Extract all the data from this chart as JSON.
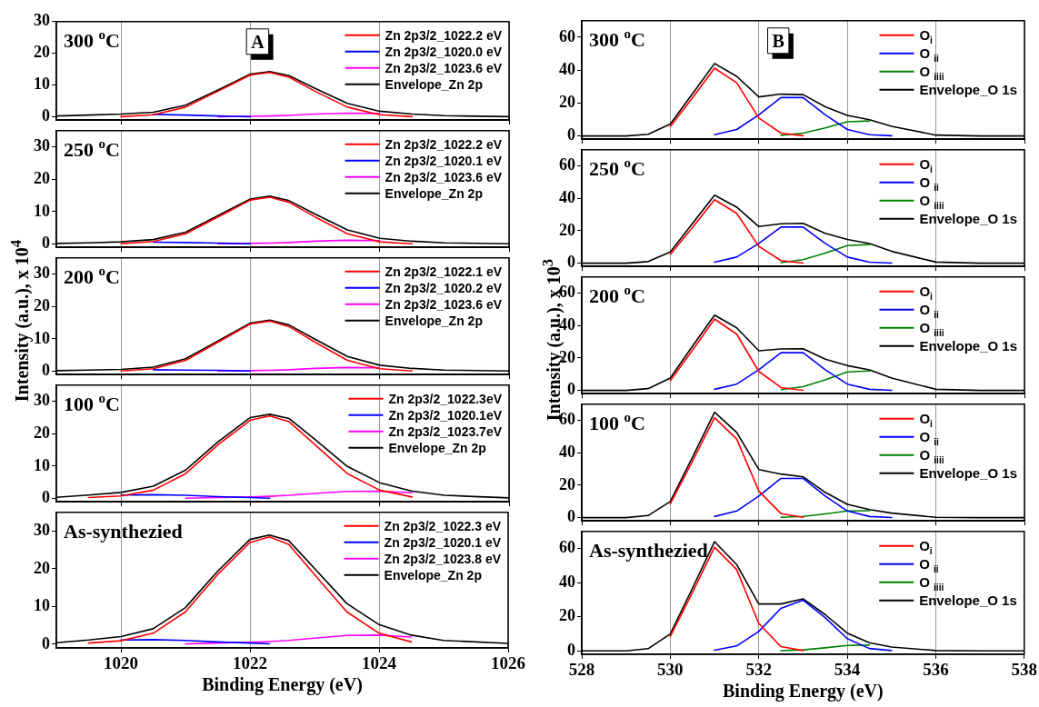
{
  "chart_data": [
    {
      "type": "line",
      "title": "300 $^{o}$C",
      "annotations": [
        "A"
      ],
      "x": [
        1019,
        1019.5,
        1020,
        1020.5,
        1021,
        1021.5,
        1022,
        1022.3,
        1022.6,
        1023,
        1023.5,
        1024,
        1024.5,
        1025,
        1026
      ],
      "xlim": [
        1019,
        1026
      ],
      "xticks": [
        1020,
        1022,
        1024,
        1026
      ],
      "ylim": [
        -1,
        30
      ],
      "yticks": [
        0,
        10,
        20,
        30
      ],
      "tick_labels": "y",
      "grid": "x",
      "legend": "top right",
      "marker": "none",
      "line_style": "solid",
      "series": [
        {
          "name": "Zn 2p3/2_1022.2 eV",
          "color": "#ff0000",
          "values": [
            null,
            null,
            0.1,
            0.7,
            3.1,
            8.1,
            13.2,
            14,
            12.5,
            8.1,
            3.1,
            0.7,
            0.1,
            null,
            null
          ]
        },
        {
          "name": "Zn 2p3/2_1020.0 eV",
          "color": "#0000ff",
          "values": [
            null,
            null,
            null,
            0.8,
            0.6,
            0.3,
            0.1,
            null,
            null,
            null,
            null,
            null,
            null,
            null,
            null
          ]
        },
        {
          "name": "Zn 2p3/2_1023.6 eV",
          "color": "#ff00ff",
          "values": [
            null,
            null,
            null,
            null,
            null,
            0.1,
            0.2,
            0.3,
            0.5,
            0.9,
            1.2,
            1.1,
            null,
            null,
            null
          ]
        },
        {
          "name": "Envelope_Zn 2p",
          "color": "#000000",
          "values": [
            0.3,
            0.6,
            0.9,
            1.5,
            3.7,
            8.5,
            13.5,
            14.3,
            13,
            9,
            4.3,
            1.8,
            0.9,
            0.4,
            0.1
          ]
        }
      ]
    },
    {
      "type": "line",
      "title": "250 $^{o}$C",
      "x": [
        1019,
        1019.5,
        1020,
        1020.5,
        1021,
        1021.5,
        1022,
        1022.3,
        1022.6,
        1023,
        1023.5,
        1024,
        1024.5,
        1025,
        1026
      ],
      "xlim": [
        1019,
        1026
      ],
      "xticks": [
        1020,
        1022,
        1024,
        1026
      ],
      "ylim": [
        -1,
        35
      ],
      "yticks": [
        0,
        10,
        20,
        30
      ],
      "tick_labels": "y",
      "grid": "x",
      "legend": "top right",
      "marker": "none",
      "line_style": "solid",
      "series": [
        {
          "name": "Zn 2p3/2_1022.2 eV",
          "color": "#ff0000",
          "values": [
            null,
            null,
            0.1,
            0.8,
            3.2,
            8.4,
            13.6,
            14.5,
            12.9,
            8.4,
            3.2,
            0.7,
            0.1,
            null,
            null
          ]
        },
        {
          "name": "Zn 2p3/2_1020.1 eV",
          "color": "#0000ff",
          "values": [
            null,
            null,
            null,
            0.6,
            0.5,
            0.3,
            0.1,
            null,
            null,
            null,
            null,
            null,
            null,
            null,
            null
          ]
        },
        {
          "name": "Zn 2p3/2_1023.6 eV",
          "color": "#ff00ff",
          "values": [
            null,
            null,
            null,
            null,
            null,
            0.1,
            0.2,
            0.3,
            0.5,
            0.9,
            1.2,
            1.1,
            null,
            null,
            null
          ]
        },
        {
          "name": "Envelope_Zn 2p",
          "color": "#000000",
          "values": [
            0.2,
            0.4,
            0.7,
            1.4,
            3.7,
            8.8,
            13.9,
            14.8,
            13.4,
            9.3,
            4.4,
            1.8,
            0.9,
            0.4,
            0.1
          ]
        }
      ]
    },
    {
      "type": "line",
      "title": "200 $^{o}$C",
      "ylabel": "Intensity (a.u.), x 10$^{4}$",
      "x": [
        1019,
        1019.5,
        1020,
        1020.5,
        1021,
        1021.5,
        1022,
        1022.3,
        1022.6,
        1023,
        1023.5,
        1024,
        1024.5,
        1025,
        1026
      ],
      "xlim": [
        1019,
        1026
      ],
      "xticks": [
        1020,
        1022,
        1024,
        1026
      ],
      "ylim": [
        -1,
        35
      ],
      "yticks": [
        0,
        10,
        20,
        30
      ],
      "tick_labels": "y",
      "grid": "x",
      "legend": "top right",
      "marker": "none",
      "line_style": "solid",
      "series": [
        {
          "name": "Zn 2p3/2_1022.1 eV",
          "color": "#ff0000",
          "values": [
            null,
            null,
            0.1,
            0.8,
            3.4,
            9,
            14.6,
            15.5,
            13.8,
            9,
            3.4,
            0.8,
            0.1,
            null,
            null
          ]
        },
        {
          "name": "Zn 2p3/2_1020.2 eV",
          "color": "#0000ff",
          "values": [
            null,
            null,
            null,
            0.5,
            0.4,
            0.3,
            0.1,
            null,
            null,
            null,
            null,
            null,
            null,
            null,
            null
          ]
        },
        {
          "name": "Zn 2p3/2_1023.6 eV",
          "color": "#ff00ff",
          "values": [
            null,
            null,
            null,
            null,
            null,
            0.1,
            0.2,
            0.3,
            0.5,
            0.9,
            1.2,
            1.1,
            null,
            null,
            null
          ]
        },
        {
          "name": "Envelope_Zn 2p",
          "color": "#000000",
          "values": [
            0.2,
            0.4,
            0.6,
            1.3,
            3.9,
            9.4,
            14.9,
            15.8,
            14.3,
            9.9,
            4.6,
            1.9,
            0.9,
            0.4,
            0.1
          ]
        }
      ]
    },
    {
      "type": "line",
      "title": "100 $^{o}$C",
      "x": [
        1019,
        1019.5,
        1020,
        1020.5,
        1021,
        1021.5,
        1022,
        1022.3,
        1022.6,
        1023,
        1023.5,
        1024,
        1024.5,
        1025,
        1026
      ],
      "xlim": [
        1019,
        1026
      ],
      "xticks": [
        1020,
        1022,
        1024,
        1026
      ],
      "ylim": [
        -1,
        35
      ],
      "yticks": [
        0,
        10,
        20,
        30
      ],
      "tick_labels": "y",
      "grid": "x",
      "legend": "top right",
      "marker": "none",
      "line_style": "solid",
      "series": [
        {
          "name": "Zn 2p3/2_1022.3eV",
          "color": "#ff0000",
          "values": [
            null,
            0.3,
            0.8,
            2.6,
            7.7,
            16.6,
            24.2,
            25.5,
            23.7,
            16.6,
            7.7,
            2.6,
            0.5,
            null,
            null
          ]
        },
        {
          "name": "Zn 2p3/2_1020.1eV",
          "color": "#0000ff",
          "values": [
            null,
            null,
            1.1,
            1.2,
            1,
            0.6,
            0.3,
            0.1,
            null,
            null,
            null,
            null,
            null,
            null,
            null
          ]
        },
        {
          "name": "Zn 2p3/2_1023.7eV",
          "color": "#ff00ff",
          "values": [
            null,
            null,
            null,
            null,
            0.1,
            0.3,
            0.5,
            0.7,
            1,
            1.6,
            2.2,
            2.3,
            1.8,
            null,
            null
          ]
        },
        {
          "name": "Envelope_Zn 2p",
          "color": "#000000",
          "values": [
            0.4,
            1.1,
            1.9,
            3.8,
            8.8,
            17.5,
            25,
            26,
            24.7,
            18.2,
            9.9,
            4.9,
            2.3,
            1,
            0.2
          ]
        }
      ]
    },
    {
      "type": "line",
      "title": "As-synthezied",
      "xlabel": "Binding Energy (eV)",
      "x": [
        1019,
        1019.5,
        1020,
        1020.5,
        1021,
        1021.5,
        1022,
        1022.3,
        1022.6,
        1023,
        1023.5,
        1024,
        1024.5,
        1025,
        1026
      ],
      "xlim": [
        1019,
        1026
      ],
      "xticks": [
        1020,
        1022,
        1024,
        1026
      ],
      "ylim": [
        -1,
        35
      ],
      "yticks": [
        0,
        10,
        20,
        30
      ],
      "grid": "x",
      "legend": "top right",
      "marker": "none",
      "line_style": "solid",
      "series": [
        {
          "name": "Zn 2p3/2_1022.3 eV",
          "color": "#ff0000",
          "values": [
            null,
            0.3,
            0.9,
            2.9,
            8.6,
            18.5,
            27,
            28.5,
            26.5,
            18.5,
            8.6,
            2.9,
            0.6,
            null,
            null
          ]
        },
        {
          "name": "Zn 2p3/2_1020.1 eV",
          "color": "#0000ff",
          "values": [
            null,
            null,
            1.1,
            1.2,
            1,
            0.6,
            0.3,
            0.1,
            null,
            null,
            null,
            null,
            null,
            null,
            null
          ]
        },
        {
          "name": "Zn 2p3/2_1023.8 eV",
          "color": "#ff00ff",
          "values": [
            null,
            null,
            null,
            null,
            0.1,
            0.3,
            0.5,
            0.7,
            1,
            1.6,
            2.3,
            2.4,
            1.9,
            null,
            null
          ]
        },
        {
          "name": "Envelope_Zn 2p",
          "color": "#000000",
          "values": [
            0.4,
            1.1,
            2,
            4.1,
            9.7,
            19.4,
            27.8,
            29,
            27.5,
            20.1,
            10.8,
            5.2,
            2.4,
            1,
            0.2
          ]
        }
      ]
    },
    {
      "type": "line",
      "title": "300 $^{o}$C",
      "annotations": [
        "B"
      ],
      "x": [
        528,
        529,
        529.5,
        530,
        530.5,
        531,
        531.5,
        532,
        532.5,
        533,
        533.5,
        534,
        534.5,
        535,
        536,
        537,
        538
      ],
      "xlim": [
        528,
        538
      ],
      "xticks": [
        528,
        530,
        532,
        534,
        536,
        538
      ],
      "ylim": [
        -2,
        70
      ],
      "yticks": [
        0,
        20,
        40,
        60
      ],
      "tick_labels": "y",
      "grid": "x",
      "legend": "top right",
      "marker": "none",
      "line_style": "solid",
      "series": [
        {
          "name": "O$_{i}$",
          "color": "#ff0000",
          "values": [
            null,
            null,
            null,
            5.7,
            23.1,
            41.2,
            32.3,
            10.9,
            1.7,
            0.1,
            null,
            null,
            null,
            null,
            null,
            null,
            null
          ]
        },
        {
          "name": "O $_{ii}$",
          "color": "#0000ff",
          "values": [
            null,
            null,
            null,
            null,
            null,
            0.7,
            3.9,
            12.8,
            23.3,
            23.3,
            12.8,
            3.9,
            0.7,
            0.1,
            null,
            null,
            null
          ]
        },
        {
          "name": "O $_{iiii}$",
          "color": "#008000",
          "values": [
            null,
            null,
            null,
            null,
            null,
            null,
            null,
            null,
            0.4,
            1.7,
            4.9,
            8.6,
            9.1,
            null,
            null,
            null,
            null
          ]
        },
        {
          "name": "Envelope_O 1s",
          "color": "#000000",
          "values": [
            0,
            0,
            1,
            7.2,
            25.6,
            44,
            36.2,
            23.7,
            25.4,
            25.1,
            17.7,
            12.5,
            9.8,
            5.8,
            0.5,
            0,
            0
          ]
        }
      ]
    },
    {
      "type": "line",
      "title": "250 $^{o}$C",
      "x": [
        528,
        529,
        529.5,
        530,
        530.5,
        531,
        531.5,
        532,
        532.5,
        533,
        533.5,
        534,
        534.5,
        535,
        536,
        537,
        538
      ],
      "xlim": [
        528,
        538
      ],
      "xticks": [
        528,
        530,
        532,
        534,
        536,
        538
      ],
      "ylim": [
        -2,
        70
      ],
      "yticks": [
        0,
        20,
        40,
        60
      ],
      "tick_labels": "y",
      "grid": "x",
      "legend": "top right",
      "marker": "none",
      "line_style": "solid",
      "series": [
        {
          "name": "O$_{i}$",
          "color": "#ff0000",
          "values": [
            null,
            null,
            null,
            5.4,
            22,
            39.2,
            30.8,
            10.4,
            1.6,
            0.1,
            null,
            null,
            null,
            null,
            null,
            null,
            null
          ]
        },
        {
          "name": "O $_{ii}$",
          "color": "#0000ff",
          "values": [
            null,
            null,
            null,
            null,
            null,
            0.6,
            3.8,
            12.2,
            22.3,
            22.3,
            12.2,
            3.8,
            0.6,
            0.1,
            null,
            null,
            null
          ]
        },
        {
          "name": "O $_{iiii}$",
          "color": "#008000",
          "values": [
            null,
            null,
            null,
            null,
            null,
            null,
            null,
            null,
            0.4,
            2.2,
            6.2,
            10.9,
            11.5,
            null,
            null,
            null,
            null
          ]
        },
        {
          "name": "Envelope_O 1s",
          "color": "#000000",
          "values": [
            0,
            0,
            1,
            6.9,
            24.5,
            42,
            34.6,
            22.6,
            24.3,
            24.6,
            18.4,
            14.7,
            12.1,
            7.3,
            0.7,
            0,
            0
          ]
        }
      ]
    },
    {
      "type": "line",
      "title": "200 $^{o}$C",
      "ylabel": "Intensity (a.u.), x 10$^{3}$",
      "x": [
        528,
        529,
        529.5,
        530,
        530.5,
        531,
        531.5,
        532,
        532.5,
        533,
        533.5,
        534,
        534.5,
        535,
        536,
        537,
        538
      ],
      "xlim": [
        528,
        538
      ],
      "xticks": [
        528,
        530,
        532,
        534,
        536,
        538
      ],
      "ylim": [
        -2,
        70
      ],
      "yticks": [
        0,
        20,
        40,
        60
      ],
      "tick_labels": "y",
      "grid": "x",
      "legend": "top right",
      "marker": "none",
      "line_style": "solid",
      "series": [
        {
          "name": "O$_{i}$",
          "color": "#ff0000",
          "values": [
            null,
            null,
            null,
            6.1,
            24.8,
            44.1,
            34.7,
            11.7,
            1.8,
            0.1,
            null,
            null,
            null,
            null,
            null,
            null,
            null
          ]
        },
        {
          "name": "O $_{ii}$",
          "color": "#0000ff",
          "values": [
            null,
            null,
            null,
            null,
            null,
            0.7,
            3.9,
            12.8,
            23.3,
            23.3,
            12.8,
            3.9,
            0.7,
            0.1,
            null,
            null,
            null
          ]
        },
        {
          "name": "O $_{iiii}$",
          "color": "#008000",
          "values": [
            null,
            null,
            null,
            null,
            null,
            null,
            null,
            null,
            0.5,
            2.3,
            6.5,
            11.4,
            12,
            null,
            null,
            null,
            null
          ]
        },
        {
          "name": "Envelope_O 1s",
          "color": "#000000",
          "values": [
            0,
            0,
            1.1,
            7.6,
            27.3,
            46.5,
            38.6,
            24.5,
            25.6,
            25.7,
            19.3,
            15.3,
            12.7,
            7.6,
            0.7,
            0,
            0
          ]
        }
      ]
    },
    {
      "type": "line",
      "title": "100 $^{o}$C",
      "x": [
        528,
        529,
        529.5,
        530,
        530.5,
        531,
        531.5,
        532,
        532.5,
        533,
        533.5,
        534,
        534.5,
        535,
        536,
        537,
        538
      ],
      "xlim": [
        528,
        538
      ],
      "xticks": [
        528,
        530,
        532,
        534,
        536,
        538
      ],
      "ylim": [
        -2,
        70
      ],
      "yticks": [
        0,
        20,
        40,
        60
      ],
      "tick_labels": "y",
      "grid": "x",
      "legend": "top right",
      "marker": "none",
      "line_style": "solid",
      "series": [
        {
          "name": "O$_{i}$",
          "color": "#ff0000",
          "values": [
            null,
            null,
            null,
            8.5,
            34.7,
            61.7,
            48.5,
            16.4,
            2.5,
            0.2,
            null,
            null,
            null,
            null,
            null,
            null,
            null
          ]
        },
        {
          "name": "O $_{ii}$",
          "color": "#0000ff",
          "values": [
            null,
            null,
            null,
            null,
            null,
            0.7,
            4.1,
            13.3,
            24.2,
            24.2,
            13.3,
            4.1,
            0.7,
            0.1,
            null,
            null,
            null
          ]
        },
        {
          "name": "O $_{iiii}$",
          "color": "#008000",
          "values": [
            null,
            null,
            null,
            null,
            null,
            null,
            null,
            null,
            0.2,
            0.8,
            2.3,
            4.1,
            4.3,
            null,
            null,
            null,
            null
          ]
        },
        {
          "name": "Envelope_O 1s",
          "color": "#000000",
          "values": [
            0,
            0,
            1.3,
            10,
            37.2,
            65,
            52.6,
            29.7,
            26.9,
            25.2,
            15.6,
            8.2,
            5,
            2.8,
            0.2,
            0,
            0
          ]
        }
      ]
    },
    {
      "type": "line",
      "title": "As-synthezied",
      "xlabel": "Binding Energy (eV)",
      "x": [
        528,
        529,
        529.5,
        530,
        530.5,
        531,
        531.5,
        532,
        532.5,
        533,
        533.5,
        534,
        534.5,
        535,
        536,
        537,
        538
      ],
      "xlim": [
        528,
        538
      ],
      "xticks": [
        528,
        530,
        532,
        534,
        536,
        538
      ],
      "ylim": [
        -2,
        70
      ],
      "yticks": [
        0,
        20,
        40,
        60
      ],
      "grid": "x",
      "legend": "top right",
      "marker": "none",
      "line_style": "solid",
      "series": [
        {
          "name": "O$_{i}$",
          "color": "#ff0000",
          "values": [
            null,
            null,
            null,
            8.4,
            34.1,
            60.8,
            47.7,
            16.1,
            2.5,
            0.2,
            null,
            null,
            null,
            null,
            null,
            null,
            null
          ]
        },
        {
          "name": "O $_{ii}$",
          "color": "#0000ff",
          "values": [
            null,
            null,
            null,
            null,
            null,
            0.4,
            2.9,
            11.4,
            24.9,
            29.7,
            19.5,
            7.2,
            1.4,
            0.2,
            null,
            null,
            null
          ]
        },
        {
          "name": "O $_{iiii}$",
          "color": "#008000",
          "values": [
            null,
            null,
            null,
            null,
            null,
            null,
            null,
            null,
            0.1,
            0.6,
            1.8,
            3.2,
            3.4,
            null,
            null,
            null,
            null
          ]
        },
        {
          "name": "Envelope_O 1s",
          "color": "#000000",
          "values": [
            0,
            0,
            1.3,
            9.9,
            36.6,
            64,
            50.6,
            27.5,
            27.5,
            30.5,
            21.3,
            10.4,
            4.8,
            2.3,
            0.2,
            0,
            0
          ]
        }
      ]
    }
  ]
}
